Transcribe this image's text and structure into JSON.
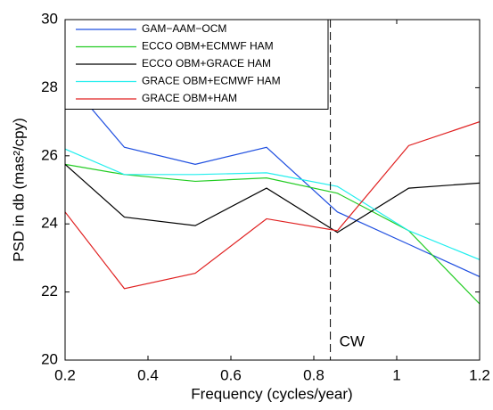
{
  "chart_data": {
    "type": "line",
    "x_label": "Frequency (cycles/year)",
    "y_label": "PSD in db (mas²/cpy)",
    "x": [
      0.2,
      0.343,
      0.514,
      0.686,
      0.857,
      1.029,
      1.2
    ],
    "series": [
      {
        "name": "GAM−AAM−OCM",
        "color": "#1f4fe0",
        "values": [
          28.3,
          26.25,
          25.75,
          26.25,
          24.35,
          23.4,
          22.45
        ]
      },
      {
        "name": "ECCO OBM+ECMWF HAM",
        "color": "#22cc22",
        "values": [
          25.75,
          25.45,
          25.25,
          25.35,
          24.9,
          23.8,
          21.65
        ]
      },
      {
        "name": "ECCO OBM+GRACE HAM",
        "color": "#000000",
        "values": [
          25.75,
          24.2,
          23.95,
          25.05,
          23.75,
          25.05,
          25.2
        ]
      },
      {
        "name": "GRACE OBM+ECMWF HAM",
        "color": "#22eeee",
        "values": [
          26.2,
          25.45,
          25.45,
          25.5,
          25.1,
          23.8,
          22.95
        ]
      },
      {
        "name": "GRACE OBM+HAM",
        "color": "#e02020",
        "values": [
          24.35,
          22.1,
          22.55,
          24.15,
          23.8,
          26.3,
          27.0
        ]
      }
    ],
    "xlim": [
      0.2,
      1.2
    ],
    "xticks": [
      0.2,
      0.4,
      0.6,
      0.8,
      1,
      1.2
    ],
    "ylim": [
      20,
      30
    ],
    "yticks": [
      20,
      22,
      24,
      26,
      28,
      30
    ],
    "vline": {
      "x": 0.84,
      "label": "CW"
    },
    "legend": "top-left"
  }
}
